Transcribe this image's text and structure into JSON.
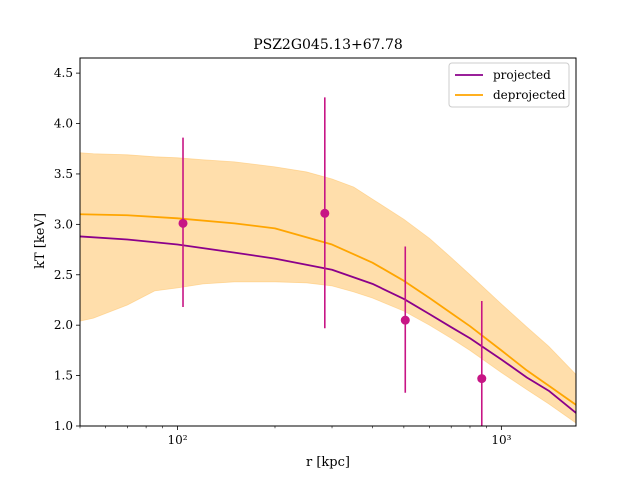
{
  "chart_data": {
    "type": "line",
    "title": "PSZ2G045.13+67.78",
    "xlabel": "r [kpc]",
    "ylabel": "kT [keV]",
    "x_scale": "log",
    "xlim": [
      50,
      1700
    ],
    "ylim": [
      1.0,
      4.65
    ],
    "x_ticks": [
      100,
      1000
    ],
    "x_tick_labels": [
      "10²",
      "10³"
    ],
    "y_ticks": [
      1.0,
      1.5,
      2.0,
      2.5,
      3.0,
      3.5,
      4.0,
      4.5
    ],
    "y_tick_labels": [
      "1.0",
      "1.5",
      "2.0",
      "2.5",
      "3.0",
      "3.5",
      "4.0",
      "4.5"
    ],
    "grid": false,
    "legend_position": "top-right",
    "legend": [
      "projected",
      "deprojected"
    ],
    "colors": {
      "projected": "#8b008b",
      "deprojected": "#ffa500",
      "band": "#ffdeab",
      "points": "#c71585"
    },
    "series": [
      {
        "name": "projected",
        "x": [
          50,
          70,
          100,
          150,
          200,
          300,
          400,
          500,
          600,
          700,
          800,
          1000,
          1200,
          1400,
          1700
        ],
        "values": [
          2.88,
          2.85,
          2.8,
          2.72,
          2.66,
          2.55,
          2.41,
          2.26,
          2.11,
          1.98,
          1.87,
          1.66,
          1.48,
          1.35,
          1.13
        ]
      },
      {
        "name": "deprojected",
        "x": [
          50,
          70,
          100,
          150,
          200,
          300,
          400,
          500,
          600,
          700,
          800,
          1000,
          1200,
          1400,
          1700
        ],
        "values": [
          3.1,
          3.09,
          3.06,
          3.01,
          2.96,
          2.8,
          2.62,
          2.44,
          2.27,
          2.12,
          1.99,
          1.75,
          1.55,
          1.4,
          1.21
        ]
      }
    ],
    "band": {
      "series": "deprojected",
      "x": [
        50,
        55,
        70,
        85,
        100,
        120,
        150,
        200,
        250,
        300,
        350,
        400,
        500,
        600,
        700,
        800,
        1000,
        1200,
        1400,
        1700
      ],
      "upper": [
        3.71,
        3.7,
        3.69,
        3.67,
        3.66,
        3.64,
        3.62,
        3.57,
        3.52,
        3.45,
        3.37,
        3.25,
        3.05,
        2.86,
        2.67,
        2.5,
        2.21,
        1.98,
        1.79,
        1.51
      ],
      "lower": [
        2.04,
        2.07,
        2.2,
        2.34,
        2.37,
        2.41,
        2.43,
        2.43,
        2.42,
        2.39,
        2.33,
        2.27,
        2.14,
        2.0,
        1.87,
        1.75,
        1.53,
        1.36,
        1.22,
        1.03
      ]
    },
    "points": {
      "x": [
        104,
        285,
        505,
        870
      ],
      "y": [
        3.01,
        3.11,
        2.05,
        1.47
      ],
      "yerr_low": [
        2.18,
        1.97,
        1.33,
        1.0
      ],
      "yerr_high": [
        3.86,
        4.26,
        2.78,
        2.24
      ]
    }
  }
}
